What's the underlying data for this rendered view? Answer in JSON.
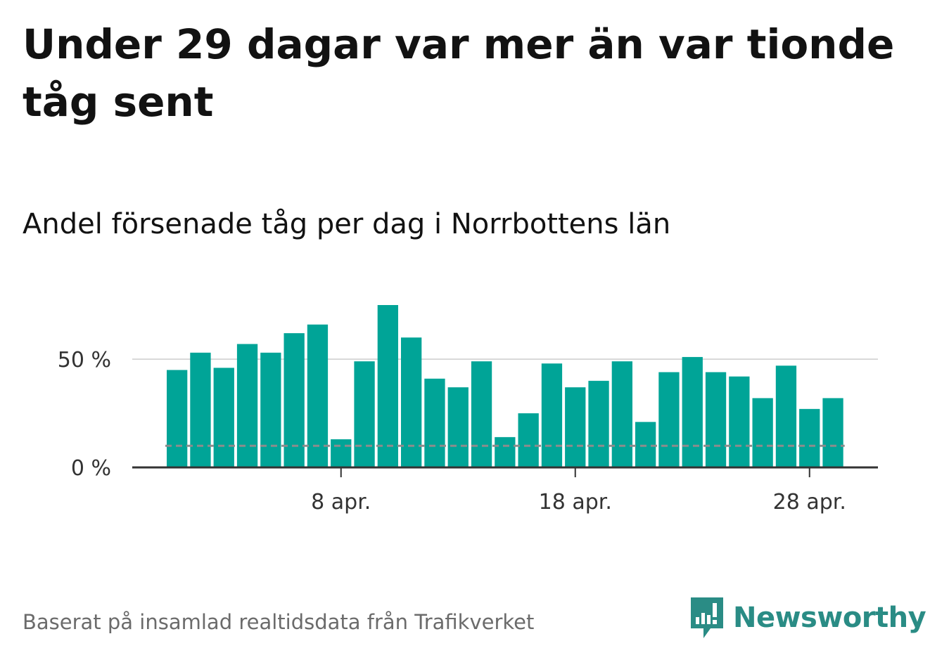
{
  "title": "Under 29 dagar var mer än var tionde tåg sent",
  "subtitle": "Andel försenade tåg per dag i Norrbottens län",
  "footer": {
    "source": "Baserat på insamlad realtidsdata från Trafikverket",
    "brand": "Newsworthy",
    "brand_icon": "newsworthy-logo-icon"
  },
  "colors": {
    "bar": "#00a497",
    "reference_line": "#8c8c8c",
    "gridline": "#d9d9d9",
    "axis": "#333333",
    "brand": "#2a8c85"
  },
  "chart_data": {
    "type": "bar",
    "title": "Andel försenade tåg per dag i Norrbottens län",
    "x": [
      "1 apr.",
      "2 apr.",
      "3 apr.",
      "4 apr.",
      "5 apr.",
      "6 apr.",
      "7 apr.",
      "8 apr.",
      "9 apr.",
      "10 apr.",
      "11 apr.",
      "12 apr.",
      "13 apr.",
      "14 apr.",
      "15 apr.",
      "16 apr.",
      "17 apr.",
      "18 apr.",
      "19 apr.",
      "20 apr.",
      "21 apr.",
      "22 apr.",
      "23 apr.",
      "24 apr.",
      "25 apr.",
      "26 apr.",
      "27 apr.",
      "28 apr.",
      "29 apr."
    ],
    "values": [
      45,
      53,
      46,
      57,
      53,
      62,
      66,
      13,
      49,
      75,
      60,
      41,
      37,
      49,
      14,
      25,
      48,
      37,
      40,
      49,
      21,
      44,
      51,
      44,
      42,
      32,
      47,
      27,
      32
    ],
    "unit": "%",
    "reference_line": 10,
    "y_ticks": [
      {
        "value": 0,
        "label": "0 %"
      },
      {
        "value": 50,
        "label": "50 %"
      }
    ],
    "x_ticks": [
      {
        "index": 7,
        "label": "8 apr."
      },
      {
        "index": 17,
        "label": "18 apr."
      },
      {
        "index": 27,
        "label": "28 apr."
      }
    ],
    "ylim": [
      0,
      75
    ],
    "grid": true
  }
}
